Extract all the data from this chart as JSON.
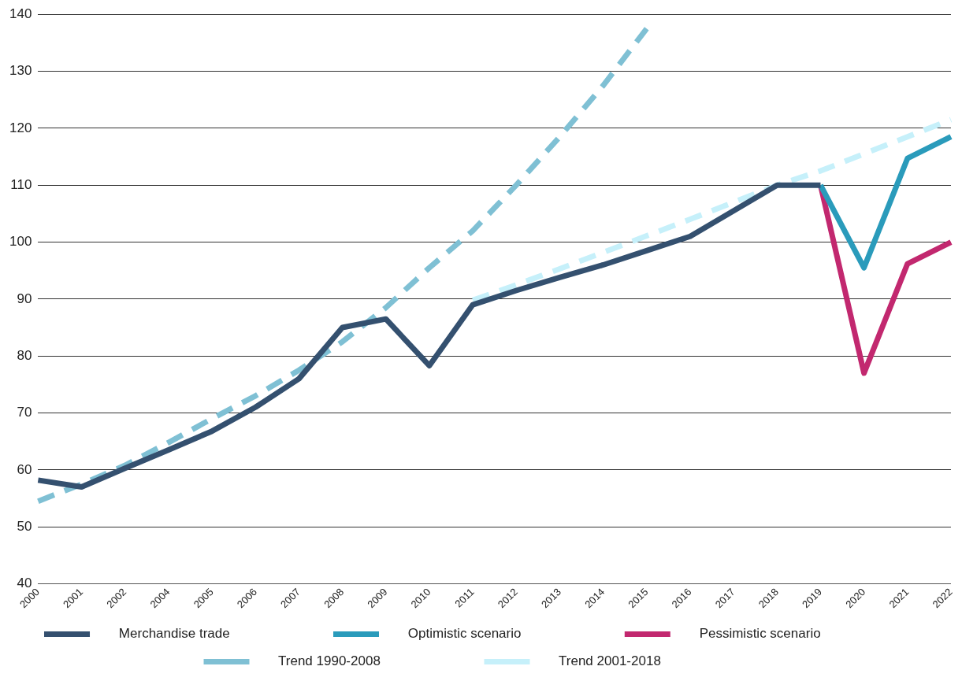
{
  "chart_data": {
    "type": "line",
    "categories": [
      "2000",
      "2001",
      "2002",
      "2004",
      "2005",
      "2006",
      "2007",
      "2008",
      "2009",
      "2010",
      "2011",
      "2012",
      "2013",
      "2014",
      "2015",
      "2016",
      "2017",
      "2018",
      "2019",
      "2020",
      "2021",
      "2022"
    ],
    "series": [
      {
        "name": "Merchandise trade",
        "color": "#34506f",
        "values": [
          58.2,
          57,
          60.3,
          63.5,
          66.8,
          71,
          76,
          85,
          86.5,
          78.3,
          89,
          91.5,
          93.8,
          96,
          98.5,
          101,
          105.5,
          110,
          110,
          null,
          null,
          null
        ]
      },
      {
        "name": "Optimistic scenario",
        "color": "#2a9bbb",
        "values": [
          null,
          null,
          null,
          null,
          null,
          null,
          null,
          null,
          null,
          null,
          null,
          null,
          null,
          null,
          null,
          null,
          null,
          null,
          110,
          95.5,
          114.7,
          118.5
        ]
      },
      {
        "name": "Pessimistic scenario",
        "color": "#c2286f",
        "values": [
          null,
          null,
          null,
          null,
          null,
          null,
          null,
          null,
          null,
          null,
          null,
          null,
          null,
          null,
          null,
          null,
          null,
          null,
          110,
          77,
          96.2,
          100
        ]
      },
      {
        "name": "Trend 1990-2008",
        "color": "#7fc0d4",
        "line_style": "dashed",
        "values": [
          54.5,
          57.5,
          60.8,
          64.8,
          69,
          73,
          77.5,
          82.5,
          88.5,
          95.5,
          102,
          110,
          118.5,
          127.5,
          137.5,
          null,
          null,
          null,
          null,
          null,
          null,
          null
        ]
      },
      {
        "name": "Trend 2001-2018",
        "color": "#c6f0fa",
        "line_style": "dashed",
        "values": [
          null,
          null,
          null,
          null,
          null,
          null,
          null,
          null,
          null,
          null,
          89.8,
          92.5,
          95.3,
          98.2,
          101.1,
          104,
          107,
          110,
          112.5,
          115.5,
          118.5,
          121.5
        ]
      }
    ],
    "ylim": [
      40,
      140
    ],
    "yticks": [
      40,
      50,
      60,
      70,
      80,
      90,
      100,
      110,
      120,
      130,
      140
    ],
    "grid": "y",
    "legend": "bottom",
    "marker": "none",
    "line_style": "solid"
  }
}
